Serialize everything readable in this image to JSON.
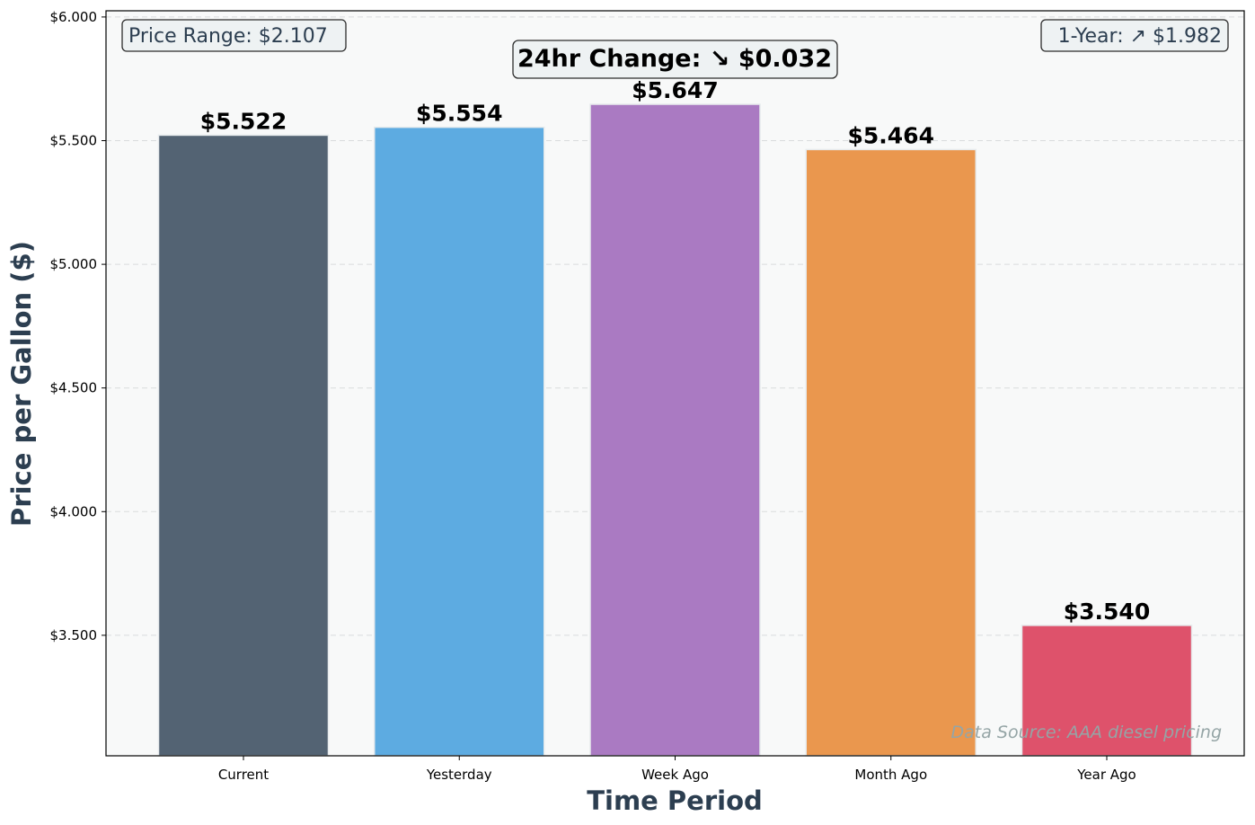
{
  "chart_data": {
    "type": "bar",
    "categories": [
      "Current",
      "Yesterday",
      "Week Ago",
      "Month Ago",
      "Year Ago"
    ],
    "values": [
      5.522,
      5.554,
      5.647,
      5.464,
      3.54
    ],
    "value_labels": [
      "$5.522",
      "$5.554",
      "$5.647",
      "$5.464",
      "$3.540"
    ],
    "bar_colors": [
      "#536373",
      "#5dabe1",
      "#aa7ac2",
      "#ea974e",
      "#de526b"
    ],
    "xlabel": "Time Period",
    "ylabel": "Price per Gallon ($)",
    "ylim": [
      3.0,
      6.0
    ],
    "yticks": [
      3.5,
      4.0,
      4.5,
      5.0,
      5.5,
      6.0
    ],
    "ytick_labels": [
      "$3.500",
      "$4.000",
      "$4.500",
      "$5.000",
      "$5.500",
      "$6.000"
    ],
    "grid": "horizontal dashed",
    "background_color": "#f8f9f9",
    "annotations": {
      "price_range": "Price Range: $2.107",
      "change_24hr": "24hr Change: ↘ $0.032",
      "one_year": "1-Year: ↗ $1.982",
      "data_source": "Data Source: AAA diesel pricing"
    }
  }
}
